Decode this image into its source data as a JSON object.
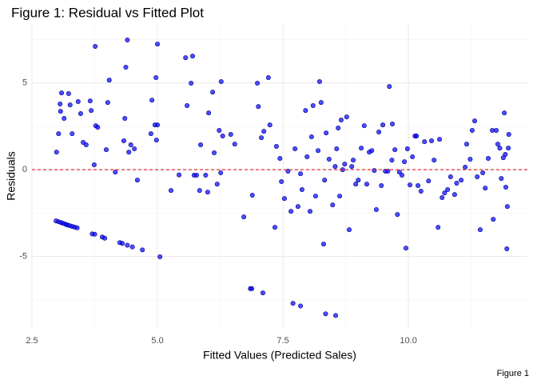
{
  "chart_data": {
    "type": "scatter",
    "title": "Figure 1: Residual vs Fitted Plot",
    "x_label": "Fitted Values (Predicted Sales)",
    "y_label": "Residuals",
    "caption": "Figure 1",
    "color": "#0000ff",
    "hline": 0,
    "hline_color": "#e31a1c",
    "grid": true,
    "xlim": [
      2.5,
      12.37
    ],
    "ylim": [
      -9.12,
      8.39
    ],
    "xticks": [
      2.5,
      {
        "value": 5,
        "label": "5.0"
      },
      7.5,
      {
        "value": 10,
        "label": "10.0"
      }
    ],
    "yticks": [
      -5,
      0,
      5
    ],
    "x_minor_ticks": [
      3.75,
      6.25,
      8.75,
      11.25
    ],
    "y_minor_ticks": [
      -7.5,
      -2.5,
      2.5,
      7.5
    ],
    "x": [
      2.98,
      3.03,
      3.08,
      3.12,
      3.17,
      3.2,
      3.25,
      3.3,
      3.35,
      3.4,
      3.7,
      3.75,
      3.9,
      3.95,
      4.25,
      4.3,
      4.4,
      4.5,
      4.7,
      5.05,
      6.85,
      6.88,
      7.1,
      7.7,
      7.85,
      8.35,
      8.55,
      2.99,
      3.03,
      3.06,
      3.09,
      3.07,
      3.14,
      3.23,
      3.26,
      3.3,
      3.42,
      3.47,
      3.52,
      3.58,
      3.66,
      3.68,
      3.76,
      3.77,
      3.74,
      3.81,
      3.98,
      4.01,
      4.04,
      4.16,
      4.33,
      4.35,
      4.37,
      4.4,
      4.43,
      4.47,
      4.54,
      4.6,
      4.87,
      4.89,
      4.97,
      5.0,
      4.98,
      4.95,
      5.0,
      5.27,
      5.43,
      5.56,
      5.59,
      5.7,
      5.67,
      5.73,
      5.78,
      5.84,
      5.86,
      5.96,
      6.0,
      6.02,
      6.1,
      6.13,
      6.19,
      6.23,
      6.26,
      6.27,
      6.3,
      6.46,
      6.54,
      6.72,
      6.89,
      6.99,
      7.01,
      7.07,
      7.12,
      7.21,
      7.24,
      7.34,
      7.37,
      7.44,
      7.47,
      7.53,
      7.6,
      7.66,
      7.74,
      7.8,
      7.85,
      7.88,
      7.95,
      7.98,
      8.04,
      8.07,
      8.1,
      8.15,
      8.2,
      8.23,
      8.26,
      8.31,
      8.33,
      8.36,
      8.42,
      8.49,
      8.54,
      8.57,
      8.6,
      8.63,
      8.66,
      8.69,
      8.73,
      8.77,
      8.82,
      8.87,
      8.9,
      8.95,
      9.0,
      9.06,
      9.12,
      9.17,
      9.22,
      9.27,
      9.32,
      9.36,
      9.41,
      9.46,
      9.49,
      9.54,
      9.59,
      9.62,
      9.67,
      9.68,
      9.73,
      9.78,
      9.82,
      9.87,
      9.92,
      9.95,
      9.98,
      10.03,
      10.08,
      10.13,
      10.16,
      10.19,
      10.25,
      10.32,
      10.4,
      10.46,
      10.51,
      10.59,
      10.62,
      10.67,
      10.72,
      10.78,
      10.84,
      10.92,
      10.96,
      11.05,
      11.13,
      11.16,
      11.23,
      11.27,
      11.32,
      11.37,
      11.43,
      11.48,
      11.53,
      11.59,
      11.67,
      11.69,
      11.75,
      11.78,
      11.82,
      11.85,
      11.89,
      11.91,
      11.93,
      11.94,
      11.96,
      11.97,
      11.99,
      12.0
    ],
    "values": [
      -2.95,
      -3.0,
      -3.05,
      -3.09,
      -3.14,
      -3.18,
      -3.22,
      -3.27,
      -3.31,
      -3.35,
      -3.7,
      -3.72,
      -3.88,
      -3.95,
      -4.2,
      -4.25,
      -4.35,
      -4.45,
      -4.62,
      -5.02,
      -6.85,
      -6.85,
      -7.1,
      -7.7,
      -7.85,
      -8.3,
      -8.4,
      1.01,
      2.07,
      3.78,
      4.42,
      3.36,
      2.95,
      4.38,
      3.73,
      2.07,
      3.92,
      3.23,
      1.57,
      1.43,
      3.96,
      3.41,
      7.1,
      2.53,
      0.28,
      2.44,
      1.15,
      3.87,
      5.16,
      -0.14,
      1.66,
      2.95,
      5.9,
      7.47,
      1.01,
      1.43,
      1.2,
      -0.6,
      2.07,
      4.0,
      5.3,
      7.23,
      1.7,
      2.58,
      2.58,
      -1.2,
      -0.3,
      6.45,
      3.69,
      6.54,
      4.98,
      -0.32,
      -0.32,
      -1.2,
      1.43,
      -0.32,
      -1.29,
      3.27,
      4.47,
      0.97,
      -0.83,
      2.26,
      -0.18,
      5.07,
      1.94,
      2.03,
      1.47,
      -2.72,
      -1.47,
      4.98,
      3.64,
      1.84,
      2.21,
      5.3,
      2.58,
      -3.32,
      1.34,
      0.65,
      -0.69,
      -1.66,
      -0.09,
      -2.4,
      1.2,
      -2.12,
      -0.23,
      -1.15,
      3.41,
      0.74,
      -2.4,
      1.89,
      3.69,
      -1.52,
      1.1,
      5.07,
      3.87,
      -4.29,
      -0.6,
      2.12,
      0.6,
      -2.03,
      0.18,
      1.2,
      2.4,
      -1.52,
      2.86,
      0,
      0.32,
      3.04,
      -3.46,
      0.18,
      0.55,
      -0.83,
      -0.6,
      1.24,
      2.53,
      -0.83,
      1.01,
      1.1,
      -0.05,
      -2.3,
      2.17,
      -0.92,
      2.58,
      -0.09,
      -0.09,
      4.79,
      0.55,
      2.63,
      1.15,
      -2.58,
      -0.14,
      -0.32,
      0.46,
      -4.52,
      1.2,
      -0.88,
      0.74,
      1.94,
      1.94,
      -0.92,
      -1.24,
      1.61,
      -0.65,
      1.66,
      0.55,
      -3.32,
      1.75,
      -1.61,
      -1.34,
      -1.15,
      -0.41,
      -1.43,
      -0.78,
      -0.6,
      0.14,
      1.47,
      0.6,
      2.26,
      2.81,
      -0.41,
      -3.46,
      -0.18,
      -1.06,
      0.65,
      2.26,
      -2.86,
      2.26,
      1.47,
      1.24,
      -0.51,
      0.69,
      3.27,
      0.88,
      -1.01,
      -4.56,
      -2.12,
      1.24,
      2.03
    ]
  }
}
